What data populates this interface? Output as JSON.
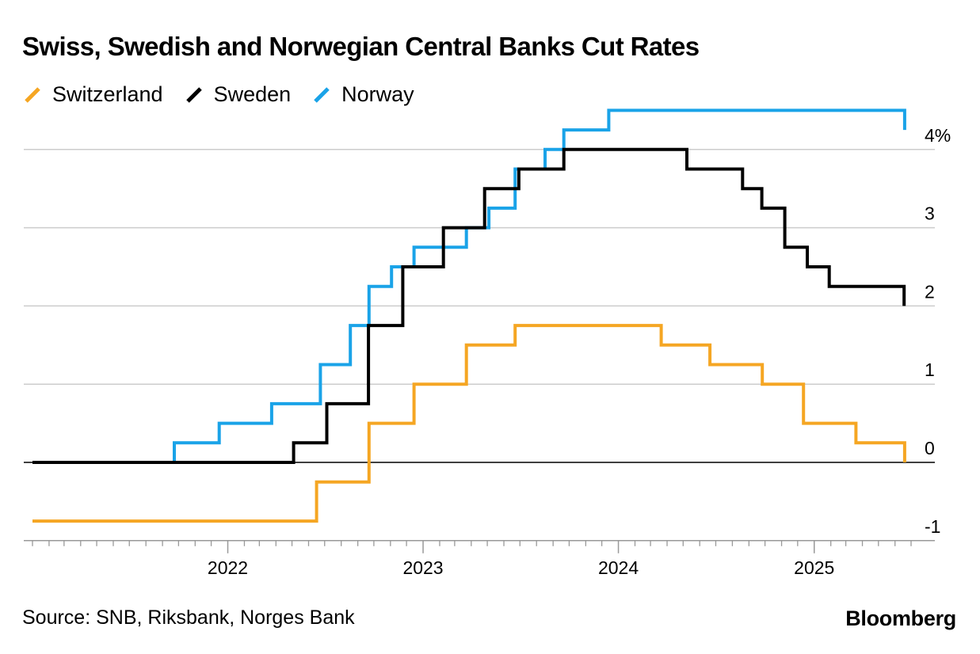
{
  "chart_data": {
    "type": "line",
    "title": "Swiss, Swedish and Norwegian Central Banks Cut Rates",
    "x_ticks": [
      "2022",
      "2023",
      "2024",
      "2025"
    ],
    "y_ticks": [
      {
        "value": 4,
        "label": "4%"
      },
      {
        "value": 3,
        "label": "3"
      },
      {
        "value": 2,
        "label": "2"
      },
      {
        "value": 1,
        "label": "1"
      },
      {
        "value": 0,
        "label": "0"
      },
      {
        "value": -1,
        "label": "-1"
      }
    ],
    "xlim": [
      "2021-01-01",
      "2025-07-01"
    ],
    "ylim": [
      -1,
      4.5
    ],
    "step": true,
    "grid": true,
    "legend_position": "top-left",
    "series": [
      {
        "name": "Switzerland",
        "color": "#f5a623",
        "points": [
          [
            "2021-01-01",
            -0.75
          ],
          [
            "2022-06-16",
            -0.25
          ],
          [
            "2022-09-22",
            0.5
          ],
          [
            "2022-12-15",
            1.0
          ],
          [
            "2023-03-23",
            1.5
          ],
          [
            "2023-06-22",
            1.75
          ],
          [
            "2024-03-21",
            1.5
          ],
          [
            "2024-06-20",
            1.25
          ],
          [
            "2024-09-26",
            1.0
          ],
          [
            "2024-12-12",
            0.5
          ],
          [
            "2025-03-20",
            0.25
          ],
          [
            "2025-06-19",
            0.0
          ]
        ]
      },
      {
        "name": "Sweden",
        "color": "#000000",
        "points": [
          [
            "2021-01-01",
            0.0
          ],
          [
            "2022-05-04",
            0.25
          ],
          [
            "2022-07-05",
            0.75
          ],
          [
            "2022-09-21",
            1.75
          ],
          [
            "2022-11-24",
            2.5
          ],
          [
            "2023-02-08",
            3.0
          ],
          [
            "2023-04-26",
            3.5
          ],
          [
            "2023-06-29",
            3.75
          ],
          [
            "2023-09-21",
            4.0
          ],
          [
            "2024-05-08",
            3.75
          ],
          [
            "2024-08-20",
            3.5
          ],
          [
            "2024-09-25",
            3.25
          ],
          [
            "2024-11-07",
            2.75
          ],
          [
            "2024-12-19",
            2.5
          ],
          [
            "2025-01-29",
            2.25
          ],
          [
            "2025-06-18",
            2.0
          ]
        ]
      },
      {
        "name": "Norway",
        "color": "#1aa3e8",
        "points": [
          [
            "2021-01-01",
            0.0
          ],
          [
            "2021-09-23",
            0.25
          ],
          [
            "2021-12-16",
            0.5
          ],
          [
            "2022-03-24",
            0.75
          ],
          [
            "2022-06-23",
            1.25
          ],
          [
            "2022-08-18",
            1.75
          ],
          [
            "2022-09-22",
            2.25
          ],
          [
            "2022-11-03",
            2.5
          ],
          [
            "2022-12-15",
            2.75
          ],
          [
            "2023-03-23",
            3.0
          ],
          [
            "2023-05-04",
            3.25
          ],
          [
            "2023-06-22",
            3.75
          ],
          [
            "2023-08-17",
            4.0
          ],
          [
            "2023-09-21",
            4.25
          ],
          [
            "2023-12-14",
            4.5
          ],
          [
            "2025-06-19",
            4.25
          ]
        ]
      }
    ]
  },
  "footer": {
    "source": "Source: SNB, Riksbank, Norges Bank",
    "brand": "Bloomberg"
  }
}
